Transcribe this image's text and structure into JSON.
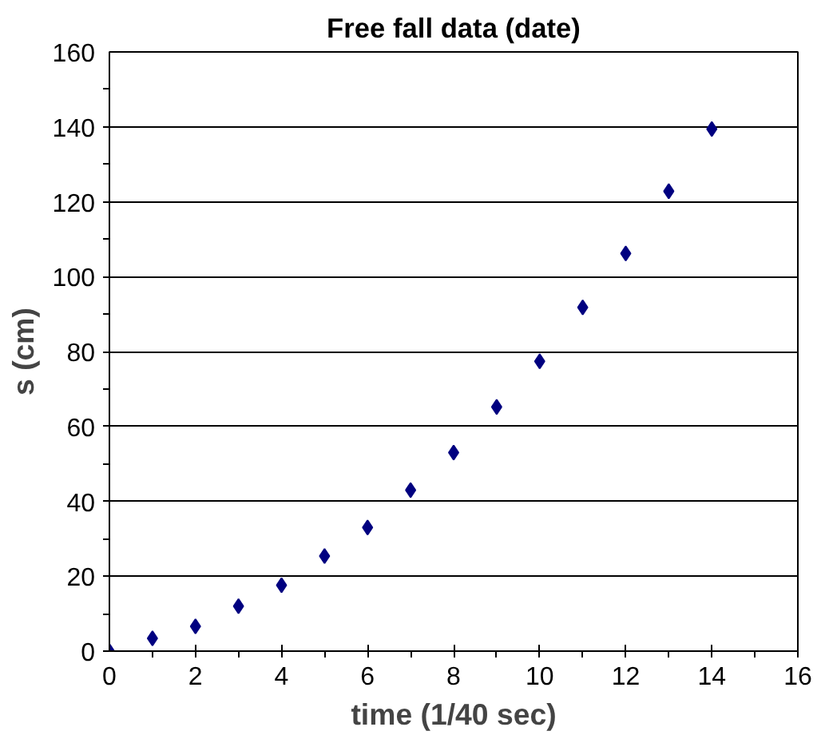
{
  "chart_data": {
    "type": "scatter",
    "title": "Free fall data (date)",
    "xlabel": "time (1/40 sec)",
    "ylabel": "s (cm)",
    "x": [
      0,
      1,
      2,
      3,
      4,
      5,
      6,
      7,
      8,
      9,
      10,
      11,
      12,
      13,
      14
    ],
    "series": [
      {
        "color": "#000080",
        "values": [
          0,
          3.4,
          6.6,
          12,
          17.6,
          25.4,
          33,
          43,
          53,
          65.2,
          77.4,
          91.8,
          106.2,
          122.8,
          139.4
        ]
      }
    ],
    "xlim": [
      0,
      16
    ],
    "xticks": [
      0,
      2,
      4,
      6,
      8,
      10,
      12,
      14,
      16
    ],
    "ylim": [
      0,
      160
    ],
    "yticks": [
      0,
      20,
      40,
      60,
      80,
      100,
      120,
      140,
      160
    ],
    "grid": "y",
    "marker": "diamond"
  }
}
